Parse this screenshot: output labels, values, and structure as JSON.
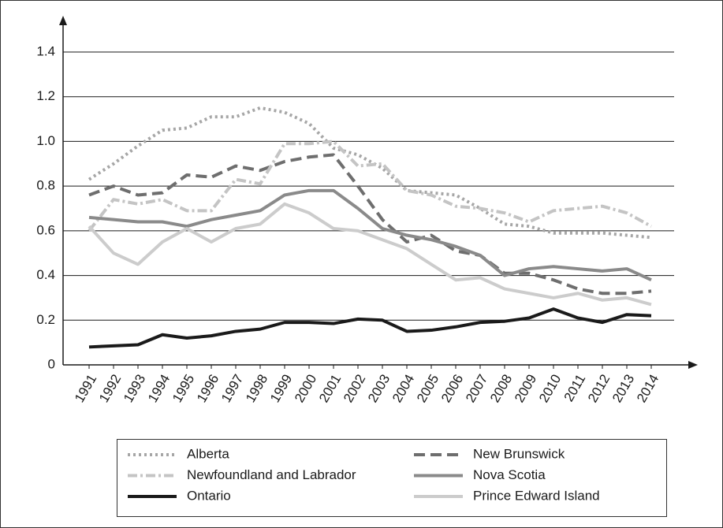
{
  "chart_data": {
    "type": "line",
    "categories": [
      "1991",
      "1992",
      "1993",
      "1994",
      "1995",
      "1996",
      "1997",
      "1998",
      "1999",
      "2000",
      "2001",
      "2002",
      "2003",
      "2004",
      "2005",
      "2006",
      "2007",
      "2008",
      "2009",
      "2010",
      "2011",
      "2012",
      "2013",
      "2014"
    ],
    "series": [
      {
        "name": "Alberta",
        "color": "#a6a6a6",
        "dash": "dotted",
        "values": [
          0.83,
          0.9,
          0.98,
          1.05,
          1.06,
          1.11,
          1.11,
          1.15,
          1.13,
          1.08,
          0.97,
          0.94,
          0.88,
          0.78,
          0.77,
          0.76,
          0.7,
          0.63,
          0.62,
          0.59,
          0.59,
          0.59,
          0.58,
          0.57
        ]
      },
      {
        "name": "New Brunswick",
        "color": "#6e6e6e",
        "dash": "dashed",
        "values": [
          0.76,
          0.8,
          0.76,
          0.77,
          0.85,
          0.84,
          0.89,
          0.87,
          0.91,
          0.93,
          0.94,
          0.8,
          0.65,
          0.55,
          0.58,
          0.51,
          0.49,
          0.41,
          0.41,
          0.38,
          0.34,
          0.32,
          0.32,
          0.33
        ]
      },
      {
        "name": "Newfoundland and Labrador",
        "color": "#c4c4c4",
        "dash": "dashdot",
        "values": [
          0.6,
          0.74,
          0.72,
          0.74,
          0.69,
          0.69,
          0.83,
          0.81,
          0.99,
          0.99,
          1.0,
          0.89,
          0.9,
          0.78,
          0.76,
          0.71,
          0.7,
          0.68,
          0.64,
          0.69,
          0.7,
          0.71,
          0.68,
          0.62
        ]
      },
      {
        "name": "Nova Scotia",
        "color": "#8a8a8a",
        "dash": "solid",
        "values": [
          0.66,
          0.65,
          0.64,
          0.64,
          0.62,
          0.65,
          0.67,
          0.69,
          0.76,
          0.78,
          0.78,
          0.7,
          0.61,
          0.58,
          0.56,
          0.53,
          0.49,
          0.4,
          0.43,
          0.44,
          0.43,
          0.42,
          0.43,
          0.38
        ]
      },
      {
        "name": "Ontario",
        "color": "#1a1a1a",
        "dash": "solid",
        "values": [
          0.08,
          0.085,
          0.09,
          0.135,
          0.12,
          0.13,
          0.15,
          0.16,
          0.19,
          0.19,
          0.185,
          0.205,
          0.2,
          0.15,
          0.155,
          0.17,
          0.19,
          0.195,
          0.21,
          0.25,
          0.21,
          0.19,
          0.225,
          0.22
        ]
      },
      {
        "name": "Prince Edward Island",
        "color": "#cccccc",
        "dash": "solid",
        "values": [
          0.62,
          0.5,
          0.45,
          0.55,
          0.61,
          0.55,
          0.61,
          0.63,
          0.72,
          0.68,
          0.61,
          0.6,
          0.56,
          0.52,
          0.45,
          0.38,
          0.39,
          0.34,
          0.32,
          0.3,
          0.32,
          0.29,
          0.3,
          0.27
        ]
      }
    ],
    "ylim": [
      0,
      1.4
    ],
    "yticks": [
      0,
      0.2,
      0.4,
      0.6,
      0.8,
      {
        "value": 1,
        "label": "1.0"
      },
      1.2,
      1.4
    ],
    "grid": true
  }
}
